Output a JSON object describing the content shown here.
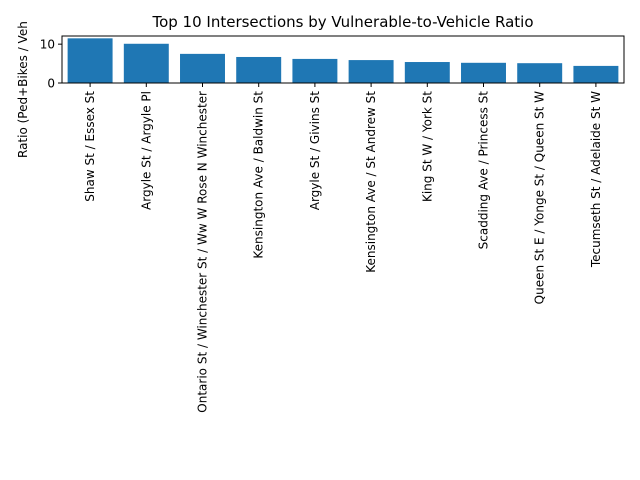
{
  "chart_data": {
    "type": "bar",
    "title": "Top 10 Intersections by Vulnerable-to-Vehicle Ratio",
    "xlabel": "",
    "ylabel": "Ratio (Ped+Bikes / Veh",
    "ylim": [
      0,
      12.1
    ],
    "yticks": [
      0,
      10
    ],
    "grid": false,
    "bar_color": "#1f77b4",
    "categories": [
      "Shaw St / Essex St",
      "Argyle St / Argyle Pl",
      "Ontario St / Winchester St / Ww W Rose N Winchester",
      "Kensington Ave / Baldwin St",
      "Argyle St / Givins St",
      "Kensington Ave / St Andrew St",
      "King St W / York St",
      "Scadding Ave / Princess St",
      "Queen St E / Yonge St / Queen St W",
      "Tecumseth St / Adelaide St W"
    ],
    "values": [
      11.5,
      10.1,
      7.5,
      6.7,
      6.2,
      5.9,
      5.4,
      5.2,
      5.1,
      4.4
    ]
  }
}
